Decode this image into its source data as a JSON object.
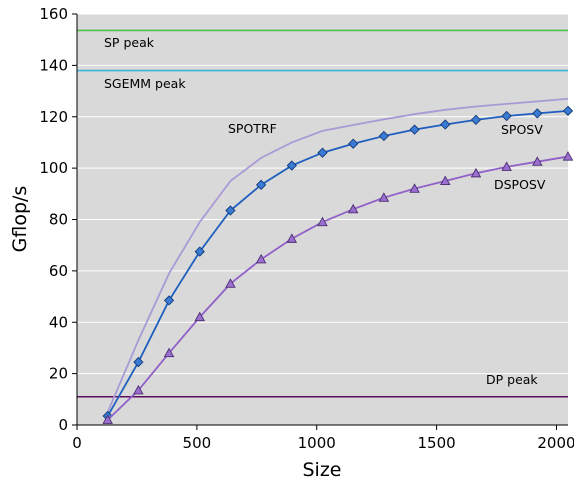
{
  "chart_data": {
    "type": "line",
    "title": "",
    "xlabel": "Size",
    "ylabel": "Gflop/s",
    "xlim": [
      0,
      2048
    ],
    "ylim": [
      0,
      160
    ],
    "xticks": [
      0,
      500,
      1000,
      1500,
      2000
    ],
    "yticks": [
      0,
      20,
      40,
      60,
      80,
      100,
      120,
      140,
      160
    ],
    "grid": "horizontal",
    "legend": "none",
    "plot_background": "#d9d9d9",
    "series": [
      {
        "name": "SPOTRF",
        "color": "#a99ad6",
        "marker": "none",
        "x": [
          128,
          256,
          384,
          512,
          640,
          768,
          896,
          1024,
          1152,
          1280,
          1408,
          1536,
          1664,
          1792,
          1920,
          2048
        ],
        "y": [
          5,
          33,
          59,
          79,
          95,
          104,
          110,
          114.5,
          116.8,
          119,
          121,
          122.7,
          124,
          125,
          126,
          127
        ]
      },
      {
        "name": "SPOSV",
        "color": "#1f5fbf",
        "marker": "diamond",
        "marker_fill": "#3a7bd5",
        "x": [
          128,
          256,
          384,
          512,
          640,
          768,
          896,
          1024,
          1152,
          1280,
          1408,
          1536,
          1664,
          1792,
          1920,
          2048
        ],
        "y": [
          3.5,
          24.5,
          48.5,
          67.5,
          83.5,
          93.5,
          101,
          106,
          109.5,
          112.5,
          115,
          117,
          118.8,
          120.3,
          121.3,
          122.3
        ]
      },
      {
        "name": "DSPOSV",
        "color": "#9160c8",
        "marker": "triangle",
        "marker_fill": "#9b6fd0",
        "x": [
          128,
          256,
          384,
          512,
          640,
          768,
          896,
          1024,
          1152,
          1280,
          1408,
          1536,
          1664,
          1792,
          1920,
          2048
        ],
        "y": [
          2,
          13.5,
          28,
          42,
          55,
          64.5,
          72.5,
          79,
          84,
          88.5,
          92,
          95,
          98,
          100.5,
          102.5,
          104.5
        ]
      }
    ],
    "reference_lines": [
      {
        "label": "SP peak",
        "value": 153.6,
        "color": "#4cc24c"
      },
      {
        "label": "SGEMM peak",
        "value": 138,
        "color": "#3ab8d8"
      },
      {
        "label": "DP peak",
        "value": 11,
        "color": "#5b0e5e"
      }
    ],
    "series_labels": [
      "SPOTRF",
      "SPOSV",
      "DSPOSV"
    ]
  }
}
